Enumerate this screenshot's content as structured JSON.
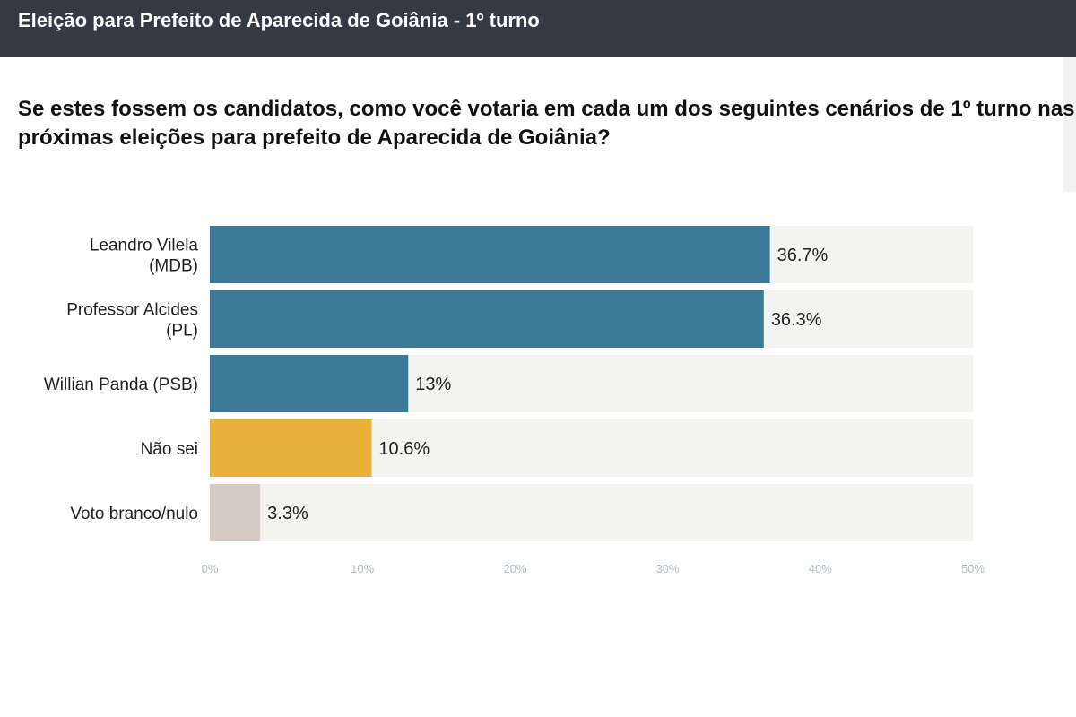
{
  "header": {
    "title": "Eleição para Prefeito de Aparecida de Goiânia - 1º turno"
  },
  "question": {
    "line1": "Se estes fossem os candidatos, como você votaria em cada um dos seguintes cenários de 1º turno nas",
    "line2": "próximas eleições para prefeito de Aparecida de Goiânia?"
  },
  "colors": {
    "candidate": "#3d7a97",
    "unknown": "#e8b13a",
    "blank": "#d5cac4",
    "track": "#f3f3f1"
  },
  "chart_data": {
    "type": "bar",
    "orientation": "horizontal",
    "categories": [
      [
        "Leandro Vilela",
        "(MDB)"
      ],
      [
        "Professor Alcides",
        "(PL)"
      ],
      [
        "Willian Panda (PSB)"
      ],
      [
        "Não sei"
      ],
      [
        "Voto branco/nulo"
      ]
    ],
    "values": [
      36.7,
      36.3,
      13,
      10.6,
      3.3
    ],
    "data_labels": [
      "36.7%",
      "36.3%",
      "13%",
      "10.6%",
      "3.3%"
    ],
    "bar_colors": [
      "#3d7a97",
      "#3d7a97",
      "#3d7a97",
      "#e8b13a",
      "#d5cac4"
    ],
    "xlim": [
      0,
      50
    ],
    "xticks": [
      "0%",
      "10%",
      "20%",
      "30%",
      "40%",
      "50%"
    ]
  }
}
